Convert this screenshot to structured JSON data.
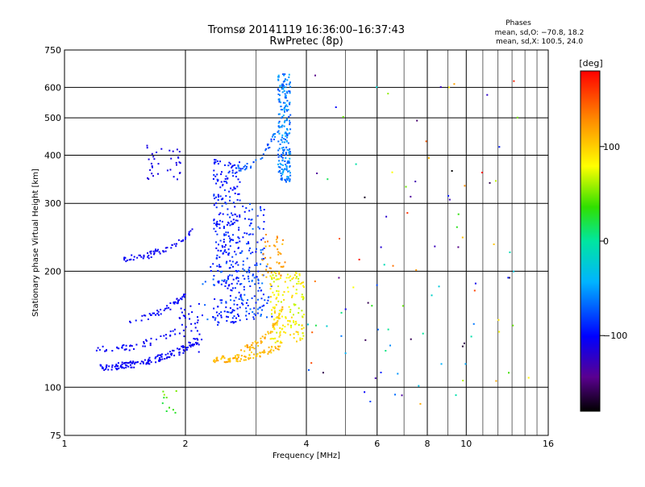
{
  "chart_data": {
    "type": "scatter",
    "title": "Tromsø 20141119 16:36:00–16:37:43",
    "subtitle": "RwPretec (8p)",
    "xlabel": "Frequency [MHz]",
    "ylabel": "Stationary phase Virtual Height [km]",
    "x_scale": "log",
    "y_scale": "log",
    "xlim": [
      1,
      16
    ],
    "ylim": [
      75,
      750
    ],
    "x_ticks": [
      {
        "value": 1,
        "label": "1"
      },
      {
        "value": 2,
        "label": "2"
      },
      {
        "value": 4,
        "label": "4"
      },
      {
        "value": 6,
        "label": "6"
      },
      {
        "value": 8,
        "label": "8"
      },
      {
        "value": 10,
        "label": "10"
      },
      {
        "value": 16,
        "label": "16"
      }
    ],
    "x_minor_grid": [
      3,
      5,
      7,
      9,
      11,
      12,
      13,
      14,
      15
    ],
    "y_ticks": [
      {
        "value": 75,
        "label": "75"
      },
      {
        "value": 100,
        "label": "100"
      },
      {
        "value": 200,
        "label": "200"
      },
      {
        "value": 300,
        "label": "300"
      },
      {
        "value": 400,
        "label": "400"
      },
      {
        "value": 500,
        "label": "500"
      },
      {
        "value": 600,
        "label": "600"
      },
      {
        "value": 750,
        "label": "750"
      }
    ],
    "grid": true,
    "stats": {
      "header": "Phases",
      "line_o": "mean, sd,O: −70.8, 18.2",
      "line_x": "mean, sd,X: 100.5, 24.0"
    },
    "colorbar": {
      "label": "[deg]",
      "range": [
        -180,
        180
      ],
      "ticks": [
        {
          "value": 100,
          "label": "100"
        },
        {
          "value": 0,
          "label": "0"
        },
        {
          "value": -100,
          "label": "−100"
        }
      ]
    },
    "clusters": [
      {
        "desc": "O trace lower",
        "x": [
          1.22,
          2.15
        ],
        "y": [
          113,
          132
        ],
        "phase": [
          -110,
          -95
        ],
        "n": 140,
        "curve": "rise"
      },
      {
        "desc": "O trace lower steep",
        "x": [
          1.9,
          2.2
        ],
        "y": [
          120,
          170
        ],
        "phase": [
          -110,
          -95
        ],
        "n": 40
      },
      {
        "desc": "O dense column",
        "x": [
          2.35,
          2.75
        ],
        "y": [
          145,
          390
        ],
        "phase": [
          -105,
          -80
        ],
        "n": 280
      },
      {
        "desc": "O column right",
        "x": [
          2.75,
          3.15
        ],
        "y": [
          150,
          300
        ],
        "phase": [
          -100,
          -60
        ],
        "n": 110
      },
      {
        "desc": "O upper trace",
        "x": [
          1.35,
          2.1
        ],
        "y": [
          215,
          255
        ],
        "phase": [
          -110,
          -100
        ],
        "n": 60,
        "curve": "rise"
      },
      {
        "desc": "O mid trace",
        "x": [
          1.45,
          2.0
        ],
        "y": [
          150,
          175
        ],
        "phase": [
          -110,
          -95
        ],
        "n": 45,
        "curve": "rise"
      },
      {
        "desc": "O low trace",
        "x": [
          1.2,
          1.9
        ],
        "y": [
          125,
          140
        ],
        "phase": [
          -110,
          -95
        ],
        "n": 45,
        "curve": "rise"
      },
      {
        "desc": "O high trace",
        "x": [
          1.6,
          1.95
        ],
        "y": [
          345,
          425
        ],
        "phase": [
          -115,
          -105
        ],
        "n": 35
      },
      {
        "desc": "O F2 column",
        "x": [
          3.4,
          3.65
        ],
        "y": [
          340,
          650
        ],
        "phase": [
          -80,
          -40
        ],
        "n": 220
      },
      {
        "desc": "O F2 tail",
        "x": [
          2.7,
          3.4
        ],
        "y": [
          370,
          470
        ],
        "phase": [
          -85,
          -55
        ],
        "n": 40,
        "curve": "rise"
      },
      {
        "desc": "O mid scatter",
        "x": [
          2.2,
          3.3
        ],
        "y": [
          150,
          210
        ],
        "phase": [
          -100,
          -60
        ],
        "n": 60
      },
      {
        "desc": "X lower trace",
        "x": [
          2.35,
          3.45
        ],
        "y": [
          118,
          128
        ],
        "phase": [
          95,
          125
        ],
        "n": 90,
        "curve": "rise"
      },
      {
        "desc": "X mid trace",
        "x": [
          2.75,
          3.5
        ],
        "y": [
          126,
          160
        ],
        "phase": [
          95,
          125
        ],
        "n": 60,
        "curve": "rise"
      },
      {
        "desc": "X cusp",
        "x": [
          3.25,
          3.95
        ],
        "y": [
          130,
          200
        ],
        "phase": [
          65,
          105
        ],
        "n": 160
      },
      {
        "desc": "X upper",
        "x": [
          3.1,
          3.55
        ],
        "y": [
          190,
          250
        ],
        "phase": [
          105,
          135
        ],
        "n": 40
      },
      {
        "desc": "X low echoes",
        "x": [
          1.75,
          1.9
        ],
        "y": [
          83,
          98
        ],
        "phase": [
          20,
          70
        ],
        "n": 10
      },
      {
        "desc": "far scatter",
        "x": [
          4.0,
          14.5
        ],
        "y": [
          90,
          680
        ],
        "phase": [
          -180,
          180
        ],
        "n": 100
      }
    ]
  }
}
